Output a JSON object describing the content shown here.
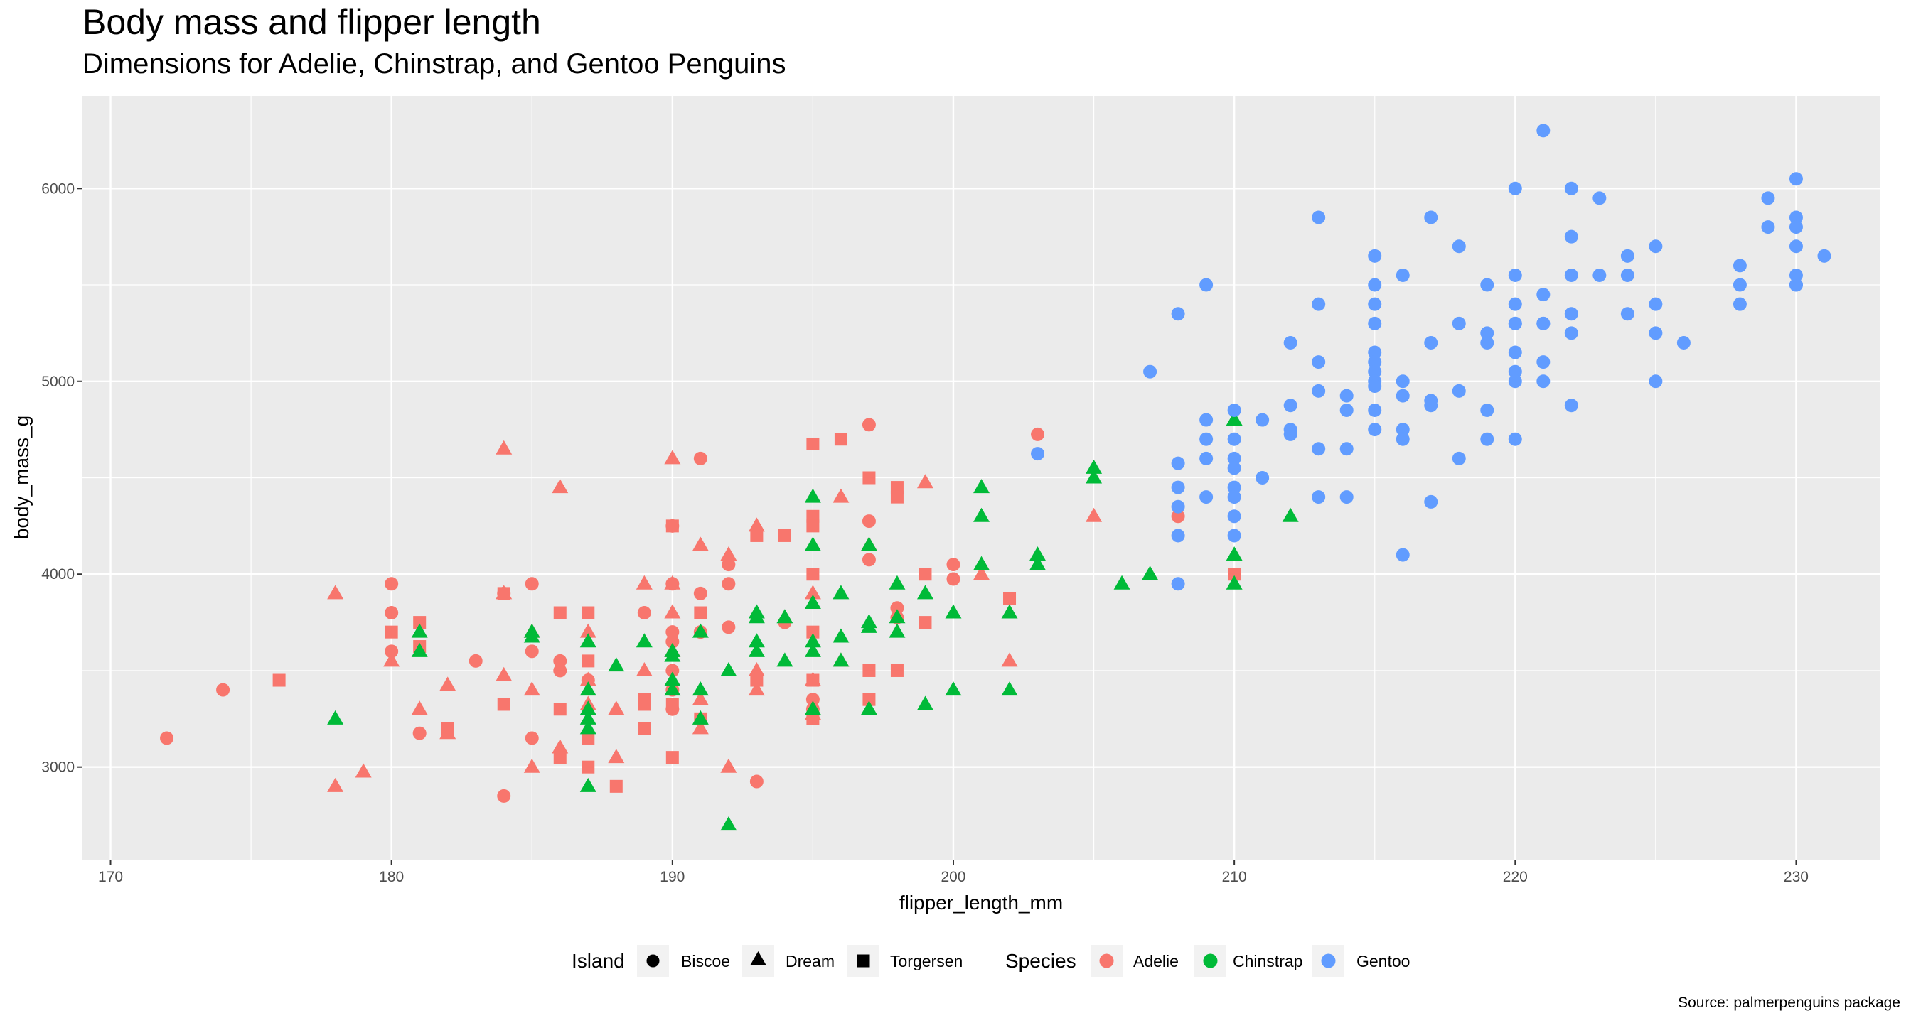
{
  "chart_data": {
    "type": "scatter",
    "title": "Body mass and flipper length",
    "subtitle": "Dimensions for Adelie, Chinstrap, and Gentoo Penguins",
    "caption": "Source: palmerpenguins package",
    "xlabel": "flipper_length_mm",
    "ylabel": "body_mass_g",
    "xlim": [
      169,
      233
    ],
    "ylim": [
      2520,
      6480
    ],
    "x_ticks": [
      170,
      180,
      190,
      200,
      210,
      220,
      230
    ],
    "y_ticks": [
      3000,
      4000,
      5000,
      6000
    ],
    "grid": true,
    "legend_position": "bottom",
    "colors": {
      "Adelie": "#F8766D",
      "Chinstrap": "#00BA38",
      "Gentoo": "#619CFF"
    },
    "legend": {
      "island_title": "Island",
      "islands": [
        "Biscoe",
        "Dream",
        "Torgersen"
      ],
      "species_title": "Species",
      "species": [
        "Adelie",
        "Chinstrap",
        "Gentoo"
      ]
    },
    "series": [
      {
        "species": "Adelie",
        "island": "Biscoe",
        "shape": "circle",
        "x": [
          172,
          174,
          180,
          180,
          180,
          181,
          183,
          184,
          184,
          185,
          185,
          185,
          186,
          186,
          187,
          189,
          190,
          190,
          190,
          190,
          190,
          190,
          190,
          191,
          191,
          191,
          192,
          192,
          192,
          193,
          194,
          195,
          195,
          197,
          197,
          197,
          198,
          198,
          200,
          200,
          203,
          208
        ],
        "y": [
          3150,
          3400,
          3950,
          3800,
          3600,
          3175,
          3550,
          3900,
          2850,
          3950,
          3600,
          3150,
          3550,
          3500,
          3450,
          3800,
          4250,
          3950,
          3700,
          3650,
          3500,
          3400,
          3300,
          4600,
          3900,
          3700,
          4050,
          3950,
          3725,
          2925,
          3750,
          3350,
          3300,
          4775,
          4275,
          4075,
          3825,
          3775,
          4050,
          3975,
          4725,
          4300
        ]
      },
      {
        "species": "Adelie",
        "island": "Dream",
        "shape": "triangle",
        "x": [
          178,
          178,
          179,
          180,
          181,
          182,
          182,
          184,
          184,
          184,
          185,
          185,
          185,
          186,
          186,
          187,
          187,
          187,
          188,
          188,
          189,
          189,
          190,
          190,
          190,
          190,
          191,
          191,
          191,
          192,
          192,
          193,
          193,
          193,
          195,
          195,
          195,
          196,
          196,
          197,
          199,
          201,
          202,
          205
        ],
        "y": [
          3900,
          2900,
          2975,
          3550,
          3300,
          3425,
          3175,
          4650,
          3900,
          3475,
          3700,
          3400,
          3000,
          4450,
          3100,
          3700,
          3450,
          3325,
          3300,
          3050,
          3950,
          3500,
          4600,
          3950,
          3800,
          3600,
          4150,
          3350,
          3200,
          4100,
          3000,
          4250,
          3500,
          3400,
          3900,
          3450,
          3275,
          4400,
          3550,
          4150,
          4475,
          4000,
          3550,
          4300
        ]
      },
      {
        "species": "Adelie",
        "island": "Torgersen",
        "shape": "square",
        "x": [
          176,
          180,
          181,
          181,
          182,
          184,
          184,
          186,
          186,
          186,
          187,
          187,
          187,
          187,
          188,
          189,
          189,
          189,
          190,
          190,
          190,
          191,
          191,
          193,
          193,
          194,
          195,
          195,
          195,
          195,
          195,
          195,
          195,
          196,
          197,
          197,
          197,
          198,
          198,
          198,
          199,
          199,
          202,
          210
        ],
        "y": [
          3450,
          3700,
          3750,
          3625,
          3200,
          3900,
          3325,
          3800,
          3300,
          3050,
          3800,
          3550,
          3150,
          3000,
          2900,
          3350,
          3325,
          3200,
          4250,
          3325,
          3050,
          3800,
          3250,
          4200,
          3450,
          4200,
          4675,
          4300,
          4250,
          4000,
          3700,
          3450,
          3250,
          4700,
          4500,
          3500,
          3350,
          4450,
          4400,
          3500,
          4000,
          3750,
          3875,
          4000
        ]
      },
      {
        "species": "Chinstrap",
        "island": "Dream",
        "shape": "triangle",
        "x": [
          178,
          181,
          181,
          185,
          185,
          187,
          187,
          187,
          187,
          187,
          187,
          188,
          189,
          190,
          190,
          190,
          190,
          191,
          191,
          191,
          192,
          192,
          193,
          193,
          193,
          193,
          194,
          194,
          195,
          195,
          195,
          195,
          195,
          195,
          196,
          196,
          196,
          197,
          197,
          197,
          197,
          198,
          198,
          198,
          199,
          199,
          200,
          200,
          201,
          201,
          201,
          202,
          202,
          203,
          203,
          205,
          205,
          206,
          207,
          210,
          210,
          210,
          212
        ],
        "y": [
          3250,
          3700,
          3600,
          3700,
          3675,
          3650,
          3400,
          3300,
          3250,
          3200,
          2900,
          3525,
          3650,
          3600,
          3575,
          3450,
          3400,
          3700,
          3400,
          3250,
          3500,
          2700,
          3800,
          3775,
          3650,
          3600,
          3775,
          3550,
          4400,
          4150,
          3850,
          3650,
          3600,
          3300,
          3900,
          3675,
          3550,
          4150,
          3750,
          3725,
          3300,
          3950,
          3775,
          3700,
          3900,
          3325,
          3800,
          3400,
          4450,
          4300,
          4050,
          3800,
          3400,
          4100,
          4050,
          4550,
          4500,
          3950,
          4000,
          4800,
          4100,
          3950,
          4300
        ]
      },
      {
        "species": "Gentoo",
        "island": "Biscoe",
        "shape": "circle",
        "x": [
          203,
          207,
          208,
          208,
          208,
          208,
          208,
          208,
          209,
          209,
          209,
          209,
          209,
          210,
          210,
          210,
          210,
          210,
          210,
          210,
          210,
          211,
          211,
          212,
          212,
          212,
          212,
          213,
          213,
          213,
          213,
          213,
          213,
          214,
          214,
          214,
          214,
          215,
          215,
          215,
          215,
          215,
          215,
          215,
          215,
          215,
          215,
          215,
          216,
          216,
          216,
          216,
          216,
          216,
          217,
          217,
          217,
          217,
          217,
          218,
          218,
          218,
          218,
          219,
          219,
          219,
          219,
          219,
          220,
          220,
          220,
          220,
          220,
          220,
          220,
          220,
          220,
          221,
          221,
          221,
          221,
          221,
          221,
          222,
          222,
          222,
          222,
          222,
          222,
          223,
          223,
          224,
          224,
          224,
          225,
          225,
          225,
          225,
          226,
          228,
          228,
          228,
          229,
          229,
          230,
          230,
          230,
          230,
          230,
          230,
          230,
          231
        ],
        "y": [
          4625,
          5050,
          5350,
          4575,
          4450,
          4350,
          4200,
          3950,
          5500,
          4800,
          4700,
          4600,
          4400,
          4850,
          4700,
          4600,
          4550,
          4450,
          4400,
          4300,
          4200,
          4500,
          4800,
          5200,
          4875,
          4750,
          4725,
          5850,
          5400,
          5100,
          4950,
          4650,
          4400,
          4925,
          4850,
          4650,
          4400,
          5650,
          5500,
          5400,
          5300,
          5150,
          5100,
          5050,
          5000,
          4975,
          4850,
          4750,
          5550,
          5000,
          4925,
          4750,
          4700,
          4100,
          5850,
          5200,
          4900,
          4875,
          4375,
          5700,
          5300,
          4950,
          4600,
          5500,
          5250,
          5200,
          4850,
          4700,
          6000,
          5550,
          5400,
          5300,
          5150,
          5050,
          5000,
          4700,
          5300,
          6300,
          5450,
          5300,
          5100,
          5000,
          5300,
          6000,
          5750,
          5550,
          5350,
          5250,
          4875,
          5950,
          5550,
          5650,
          5550,
          5350,
          5700,
          5400,
          5250,
          5000,
          5200,
          5600,
          5500,
          5400,
          5950,
          5800,
          6050,
          5850,
          5800,
          5700,
          5550,
          5500,
          5500,
          5650
        ]
      }
    ]
  }
}
